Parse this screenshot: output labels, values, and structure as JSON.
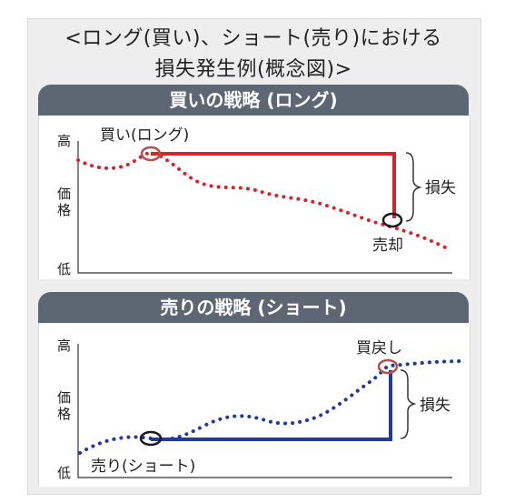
{
  "heading": {
    "line1": "<ロング(買い)、ショート(売り)における",
    "line2": "損失発生例(概念図)>"
  },
  "panels": {
    "long": {
      "title": "買いの戦略 (ロング)",
      "axis_high": "高",
      "axis_mid_1": "価",
      "axis_mid_2": "格",
      "axis_low": "低",
      "entry_label": "買い(ロング)",
      "exit_label": "売却",
      "loss_label": "損失",
      "accent_color": "#d6252a"
    },
    "short": {
      "title": "売りの戦略 (ショート)",
      "axis_high": "高",
      "axis_mid_1": "価",
      "axis_mid_2": "格",
      "axis_low": "低",
      "entry_label": "売り(ショート)",
      "exit_label": "買戻し",
      "loss_label": "損失",
      "accent_color": "#21399c"
    }
  },
  "colors": {
    "panel_bar": "#5d6673",
    "figure_background": "#eeeeee",
    "exit_circle": "#b0524a"
  }
}
